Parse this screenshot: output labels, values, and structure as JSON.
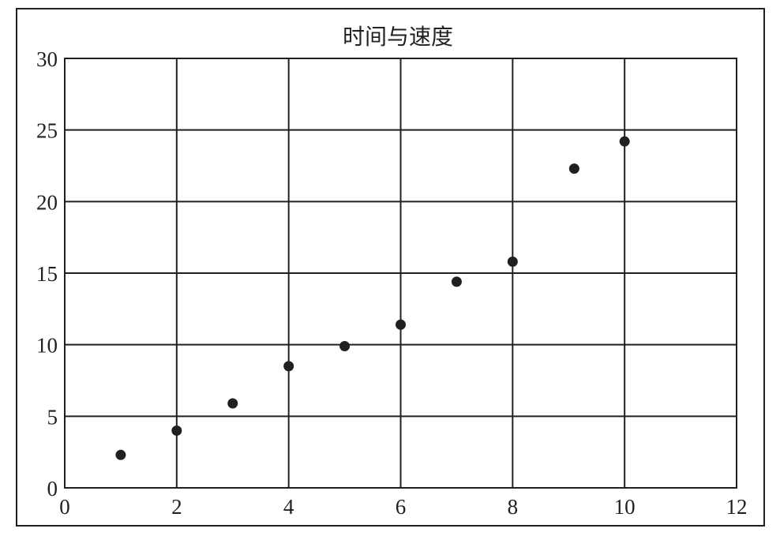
{
  "chart_data": {
    "type": "scatter",
    "title": "时间与速度",
    "xlabel": "",
    "ylabel": "",
    "xlim": [
      0,
      12
    ],
    "ylim": [
      0,
      30
    ],
    "x_ticks": [
      0,
      2,
      4,
      6,
      8,
      10,
      12
    ],
    "y_ticks": [
      0,
      5,
      10,
      15,
      20,
      25,
      30
    ],
    "grid": true,
    "legend": "none",
    "colors": {
      "marker": "#231f20",
      "grid": "#231f20",
      "frame": "#231f20"
    },
    "series": [
      {
        "x": [
          1.0,
          2.0,
          3.0,
          4.0,
          5.0,
          6.0,
          7.0,
          8.0,
          9.1,
          10.0
        ],
        "y": [
          2.3,
          4.0,
          5.9,
          8.5,
          9.9,
          11.4,
          14.4,
          15.8,
          22.3,
          24.2
        ]
      }
    ]
  }
}
